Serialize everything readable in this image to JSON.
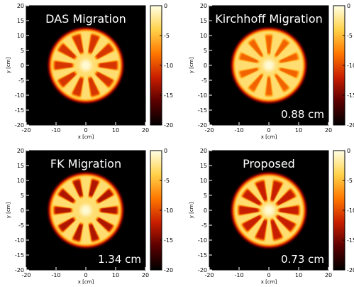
{
  "chart_data": [
    {
      "type": "heatmap",
      "title": "DAS Migration",
      "annotation": "",
      "xlabel": "x [cm]",
      "ylabel": "y [cm]",
      "xlim": [
        -20,
        20
      ],
      "ylim": [
        -20,
        20
      ],
      "xticks": [
        "-20",
        "-10",
        "0",
        "10",
        "20"
      ],
      "yticks": [
        "20",
        "15",
        "10",
        "5",
        "0",
        "-5",
        "-10",
        "-15",
        "-20"
      ],
      "colorbar": {
        "range": [
          -20,
          0
        ],
        "ticks": [
          "0",
          "-5",
          "-10",
          "-15",
          "-20"
        ]
      },
      "colormap": [
        "#000000",
        "#5a0000",
        "#c81e00",
        "#ff7800",
        "#ffd24a",
        "#ffffe6"
      ],
      "pattern": {
        "disk_radius": 12.2,
        "spokes": 10,
        "spoke_rotation_deg": 0,
        "inner_radius": 4.5,
        "outer_radius": 10.5,
        "slot_width_deg": 17,
        "slot_level": -11,
        "rim_level": -3,
        "center_level": -0.5
      }
    },
    {
      "type": "heatmap",
      "title": "Kirchhoff Migration",
      "annotation": "0.88 cm",
      "xlabel": "x [cm]",
      "ylabel": "y [cm]",
      "xlim": [
        -20,
        20
      ],
      "ylim": [
        -20,
        20
      ],
      "xticks": [
        "-20",
        "-10",
        "0",
        "10",
        "20"
      ],
      "yticks": [
        "20",
        "15",
        "10",
        "5",
        "0",
        "-5",
        "-10",
        "-15",
        "-20"
      ],
      "colorbar": {
        "range": [
          -20,
          0
        ],
        "ticks": [
          "0",
          "-5",
          "-10",
          "-15",
          "-20"
        ]
      },
      "colormap": [
        "#000000",
        "#5a0000",
        "#c81e00",
        "#ff7800",
        "#ffd24a",
        "#ffffe6"
      ],
      "pattern": {
        "disk_radius": 12.2,
        "spokes": 10,
        "spoke_rotation_deg": 18,
        "inner_radius": 4,
        "outer_radius": 10,
        "slot_width_deg": 14,
        "slot_level": -9,
        "rim_level": -3,
        "center_level": -0.5
      }
    },
    {
      "type": "heatmap",
      "title": "FK Migration",
      "annotation": "1.34 cm",
      "xlabel": "x [cm]",
      "ylabel": "y [cm]",
      "xlim": [
        -20,
        20
      ],
      "ylim": [
        -20,
        20
      ],
      "xticks": [
        "-20",
        "-10",
        "0",
        "10",
        "20"
      ],
      "yticks": [
        "20",
        "15",
        "10",
        "5",
        "0",
        "-5",
        "-10",
        "-15",
        "-20"
      ],
      "colorbar": {
        "range": [
          -20,
          0
        ],
        "ticks": [
          "0",
          "-5",
          "-10",
          "-15",
          "-20"
        ]
      },
      "colormap": [
        "#000000",
        "#5a0000",
        "#c81e00",
        "#ff7800",
        "#ffd24a",
        "#ffffe6"
      ],
      "pattern": {
        "disk_radius": 12.2,
        "spokes": 10,
        "spoke_rotation_deg": 0,
        "inner_radius": 5,
        "outer_radius": 10.5,
        "slot_width_deg": 15,
        "slot_level": -13,
        "rim_level": -3,
        "center_level": -0.5
      }
    },
    {
      "type": "heatmap",
      "title": "Proposed",
      "annotation": "0.73 cm",
      "xlabel": "x [cm]",
      "ylabel": "y [cm]",
      "xlim": [
        -20,
        20
      ],
      "ylim": [
        -20,
        20
      ],
      "xticks": [
        "-20",
        "-10",
        "0",
        "10",
        "20"
      ],
      "yticks": [
        "20",
        "15",
        "10",
        "5",
        "0",
        "-5",
        "-10",
        "-15",
        "-20"
      ],
      "colorbar": {
        "range": [
          -20,
          0
        ],
        "ticks": [
          "0",
          "-5",
          "-10",
          "-15",
          "-20"
        ]
      },
      "colormap": [
        "#000000",
        "#5a0000",
        "#c81e00",
        "#ff7800",
        "#ffd24a",
        "#ffffe6"
      ],
      "pattern": {
        "disk_radius": 12.2,
        "spokes": 10,
        "spoke_rotation_deg": 0,
        "inner_radius": 3.5,
        "outer_radius": 10,
        "slot_width_deg": 19,
        "slot_level": -12,
        "rim_level": -3,
        "center_level": -0.5
      }
    }
  ]
}
